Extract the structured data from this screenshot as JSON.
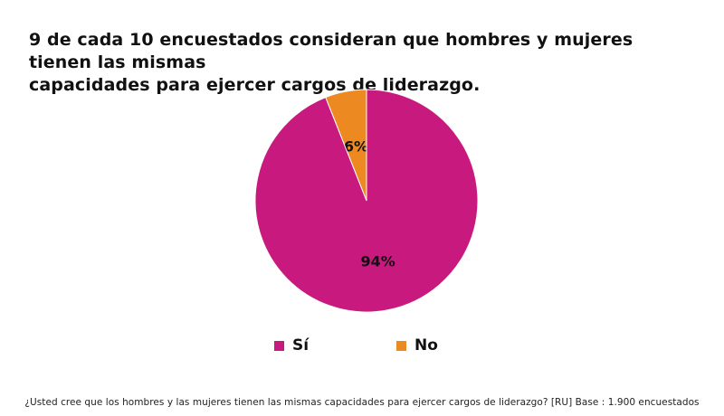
{
  "title_lines": [
    "9 de cada 10 encuestados consideran que hombres y mujeres tienen las mismas",
    "capacidades para ejercer cargos de liderazgo."
  ],
  "footnote": "¿Usted cree que los hombres y las mujeres tienen las mismas capacidades para ejercer cargos de liderazgo? [RU] Base : 1.900 encuestados",
  "chart_data": {
    "type": "pie",
    "title": "9 de cada 10 encuestados consideran que hombres y mujeres tienen las mismas capacidades para ejercer cargos de liderazgo.",
    "unit": "%",
    "slices": [
      {
        "label": "Sí",
        "value": 94,
        "display": "94%",
        "color": "#C8197F"
      },
      {
        "label": "No",
        "value": 6,
        "display": "6%",
        "color": "#EC8A21"
      }
    ],
    "legend_position": "bottom"
  }
}
